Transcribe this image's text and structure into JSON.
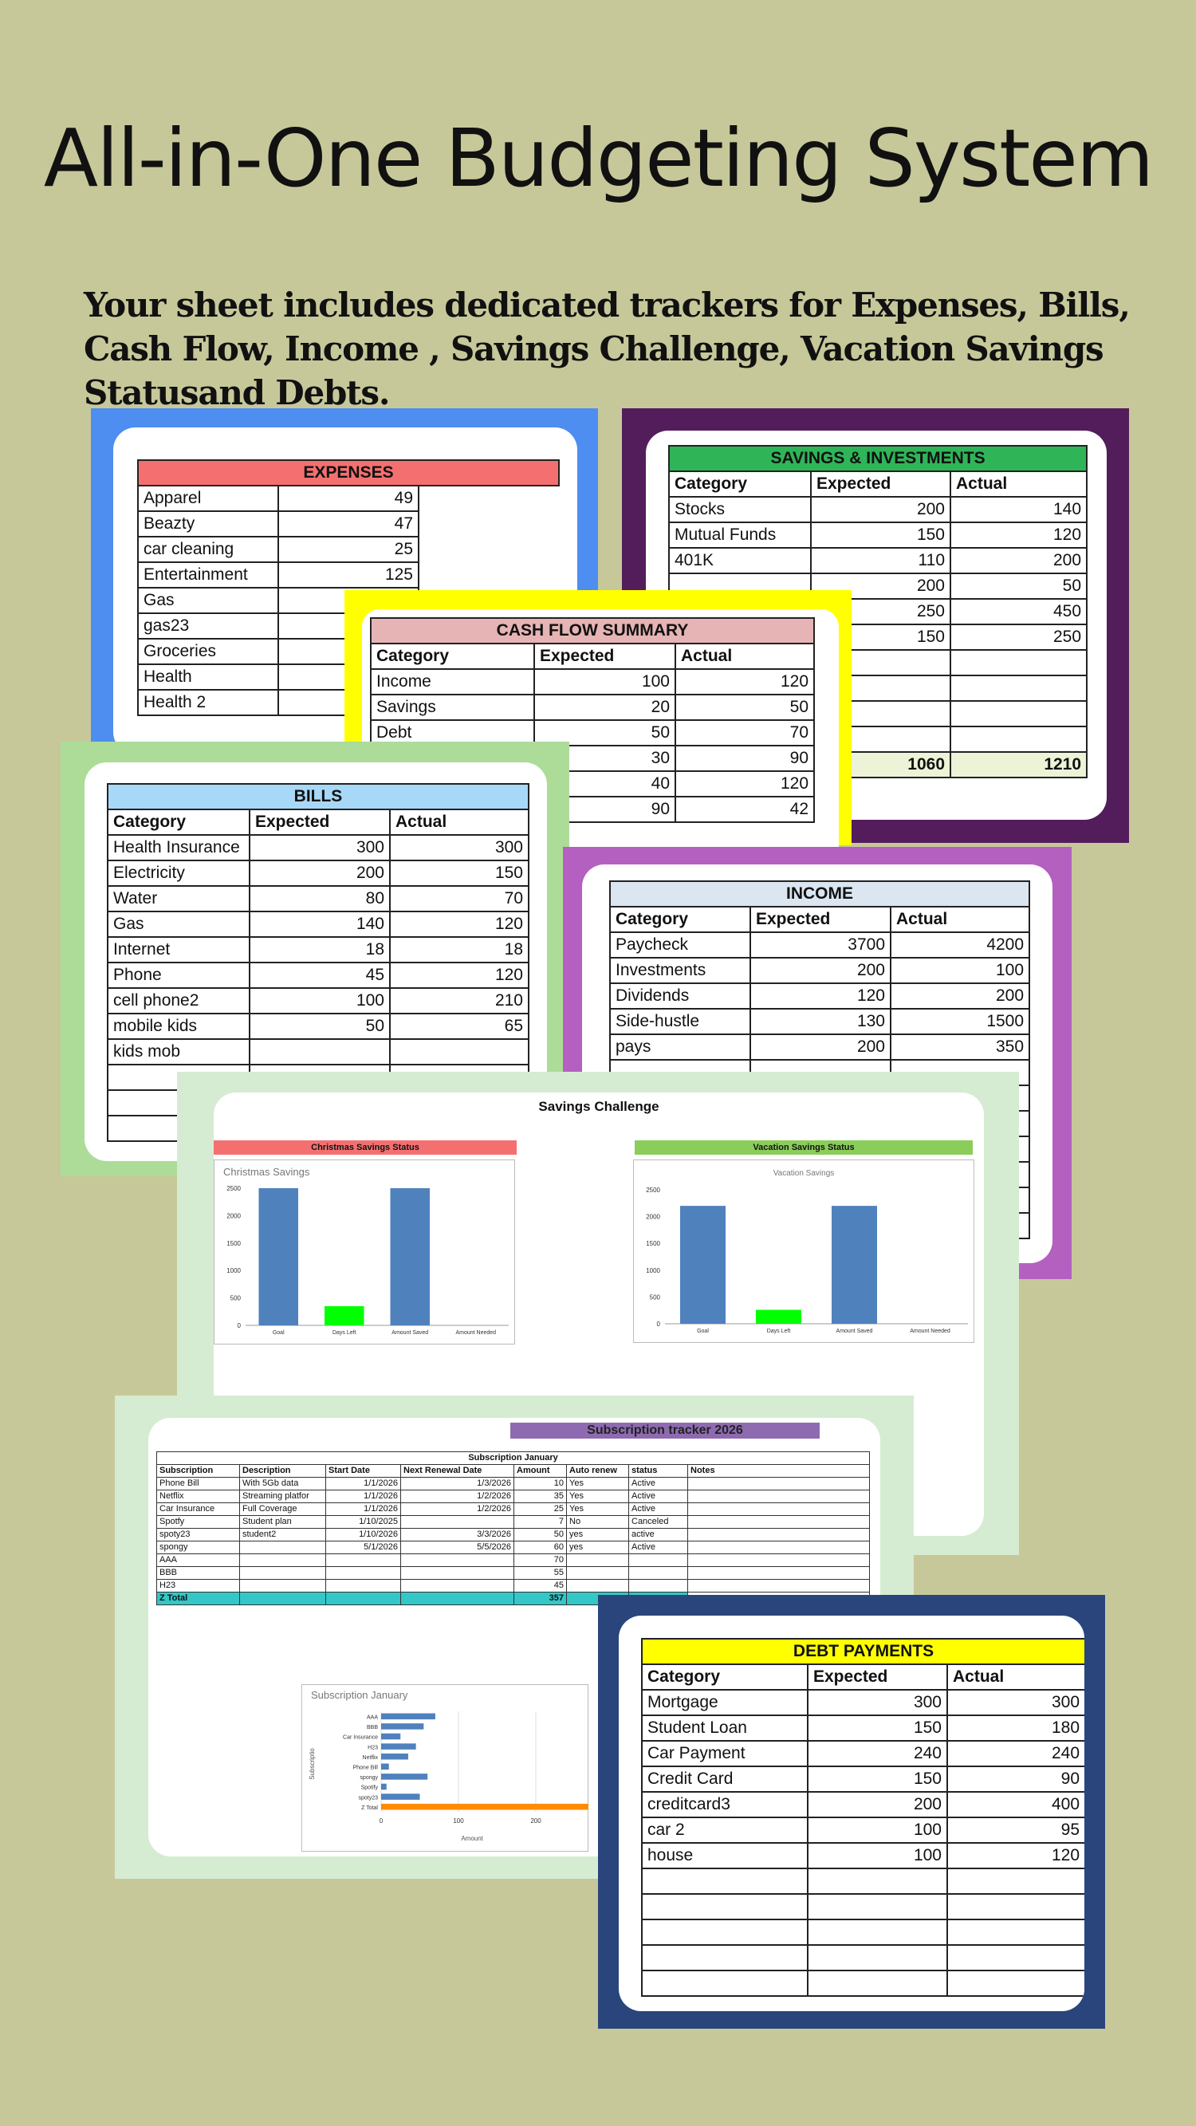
{
  "title": "All-in-One Budgeting System",
  "subtitle": "Your sheet includes dedicated trackers for Expenses, Bills, Cash Flow, Income , Savings Challenge, Vacation Savings Statusand Debts.",
  "colors": {
    "background": "#c7c89a",
    "expenses_frame": "#4d8ef0",
    "savings_frame": "#531d5c",
    "cashflow_frame": "#ffff00",
    "bills_frame": "#acdc98",
    "income_frame": "#b460c0",
    "challenge_frame": "#d6ecd2",
    "subscription_frame": "#d6ecd2",
    "debt_frame": "#29457c"
  },
  "expenses": {
    "title": "EXPENSES",
    "rows": [
      [
        "Apparel",
        "49"
      ],
      [
        "Beazty",
        "47"
      ],
      [
        "car cleaning",
        "25"
      ],
      [
        "Entertainment",
        "125"
      ],
      [
        "Gas",
        ""
      ],
      [
        "gas23",
        ""
      ],
      [
        "Groceries",
        ""
      ],
      [
        "Health",
        ""
      ],
      [
        "Health 2",
        ""
      ]
    ]
  },
  "savings": {
    "title": "SAVINGS & INVESTMENTS",
    "headers": [
      "Category",
      "Expected",
      "Actual"
    ],
    "rows": [
      [
        "Stocks",
        "200",
        "140"
      ],
      [
        "Mutual Funds",
        "150",
        "120"
      ],
      [
        "401K",
        "110",
        "200"
      ],
      [
        "",
        "200",
        "50"
      ],
      [
        "",
        "250",
        "450"
      ],
      [
        "",
        "150",
        "250"
      ],
      [
        "",
        "",
        ""
      ],
      [
        "",
        "",
        ""
      ],
      [
        "",
        "",
        ""
      ],
      [
        "",
        "",
        ""
      ]
    ],
    "total": [
      "",
      "1060",
      "1210"
    ]
  },
  "cashflow": {
    "title": "CASH FLOW SUMMARY",
    "headers": [
      "Category",
      "Expected",
      "Actual"
    ],
    "rows": [
      [
        "Income",
        "100",
        "120"
      ],
      [
        "Savings",
        "20",
        "50"
      ],
      [
        "Debt",
        "50",
        "70"
      ],
      [
        "",
        "30",
        "90"
      ],
      [
        "",
        "40",
        "120"
      ],
      [
        "",
        "90",
        "42"
      ]
    ]
  },
  "bills": {
    "title": "BILLS",
    "headers": [
      "Category",
      "Expected",
      "Actual"
    ],
    "rows": [
      [
        "Health Insurance",
        "300",
        "300"
      ],
      [
        "Electricity",
        "200",
        "150"
      ],
      [
        "Water",
        "80",
        "70"
      ],
      [
        "Gas",
        "140",
        "120"
      ],
      [
        "Internet",
        "18",
        "18"
      ],
      [
        "Phone",
        "45",
        "120"
      ],
      [
        "cell  phone2",
        "100",
        "210"
      ],
      [
        "mobile kids",
        "50",
        "65"
      ],
      [
        "kids mob",
        "",
        ""
      ],
      [
        "",
        "",
        ""
      ],
      [
        "",
        "",
        ""
      ],
      [
        "",
        "",
        ""
      ]
    ]
  },
  "income": {
    "title": "INCOME",
    "headers": [
      "Category",
      "Expected",
      "Actual"
    ],
    "rows": [
      [
        "Paycheck",
        "3700",
        "4200"
      ],
      [
        "Investments",
        "200",
        "100"
      ],
      [
        "Dividends",
        "120",
        "200"
      ],
      [
        "Side-hustle",
        "130",
        "1500"
      ],
      [
        "pays",
        "200",
        "350"
      ],
      [
        "",
        "",
        ""
      ],
      [
        "",
        "",
        ""
      ],
      [
        "",
        "",
        ""
      ],
      [
        "",
        "",
        ""
      ],
      [
        "",
        "",
        ""
      ],
      [
        "",
        "",
        ""
      ],
      [
        "",
        "",
        ""
      ]
    ]
  },
  "challenge": {
    "title": "Savings Challenge",
    "christmas_header": "Christmas Savings Status",
    "vacation_header": "Vacation Savings Status"
  },
  "chart_data": [
    {
      "type": "bar",
      "title": "Christmas Savings",
      "categories": [
        "Goal",
        "Days Left",
        "Amount Saved",
        "Amount Needed"
      ],
      "values": [
        2500,
        350,
        2500,
        0
      ],
      "ylim": [
        0,
        2500
      ],
      "yticks": [
        0,
        500,
        1000,
        1500,
        2000,
        2500
      ],
      "colors": [
        "#4f81bd",
        "#00ff00",
        "#4f81bd",
        "#4f81bd"
      ]
    },
    {
      "type": "bar",
      "title": "Vacation Savings",
      "categories": [
        "Goal",
        "Days Left",
        "Amount Saved",
        "Amount Needed"
      ],
      "values": [
        2200,
        260,
        2200,
        0
      ],
      "ylim": [
        0,
        2500
      ],
      "yticks": [
        0,
        500,
        1000,
        1500,
        2000,
        2500
      ],
      "colors": [
        "#4f81bd",
        "#00ff00",
        "#4f81bd",
        "#4f81bd"
      ]
    },
    {
      "type": "bar",
      "orientation": "horizontal",
      "title": "Subscription  January",
      "categories": [
        "AAA",
        "BBB",
        "Car Insurance",
        "H23",
        "Netflix",
        "Phone Bill",
        "spongy",
        "Spotify",
        "spoty23",
        "Z Total"
      ],
      "values": [
        70,
        55,
        25,
        45,
        35,
        10,
        60,
        7,
        50,
        357
      ],
      "xticks": [
        0,
        100,
        200
      ],
      "xlabel": "Amount",
      "ylabel": "Subscriptio",
      "colors": [
        "#4f81bd",
        "#4f81bd",
        "#4f81bd",
        "#4f81bd",
        "#4f81bd",
        "#4f81bd",
        "#4f81bd",
        "#4f81bd",
        "#4f81bd",
        "#ff8c00"
      ]
    }
  ],
  "subscription": {
    "banner": "Subscription tracker 2026",
    "table_title": "Subscription  January",
    "headers": [
      "Subscription",
      "Description",
      "Start Date",
      "Next Renewal Date",
      "Amount",
      "Auto renew",
      "status",
      "Notes"
    ],
    "rows": [
      [
        "Phone Bill",
        "With 5Gb data",
        "1/1/2026",
        "1/3/2026",
        "10",
        "Yes",
        "Active",
        ""
      ],
      [
        "Netflix",
        "Streaming platfor",
        "1/1/2026",
        "1/2/2026",
        "35",
        "Yes",
        "Active",
        ""
      ],
      [
        "Car Insurance",
        "Full Coverage",
        "1/1/2026",
        "1/2/2026",
        "25",
        "Yes",
        "Active",
        ""
      ],
      [
        "Spotfy",
        "Student plan",
        "1/10/2025",
        "",
        "7",
        "No",
        "Canceled",
        ""
      ],
      [
        "spoty23",
        "student2",
        "1/10/2026",
        "3/3/2026",
        "50",
        "yes",
        "active",
        ""
      ],
      [
        "spongy",
        "",
        "5/1/2026",
        "5/5/2026",
        "60",
        "yes",
        "Active",
        ""
      ],
      [
        "AAA",
        "",
        "",
        "",
        "70",
        "",
        "",
        ""
      ],
      [
        "BBB",
        "",
        "",
        "",
        "55",
        "",
        "",
        ""
      ],
      [
        "H23",
        "",
        "",
        "",
        "45",
        "",
        "",
        ""
      ]
    ],
    "total": [
      "Z Total",
      "",
      "",
      "",
      "357",
      "",
      "",
      ""
    ]
  },
  "debt": {
    "title": "DEBT PAYMENTS",
    "headers": [
      "Category",
      "Expected",
      "Actual"
    ],
    "rows": [
      [
        "Mortgage",
        "300",
        "300"
      ],
      [
        "Student Loan",
        "150",
        "180"
      ],
      [
        "Car Payment",
        "240",
        "240"
      ],
      [
        "Credit Card",
        "150",
        "90"
      ],
      [
        "creditcard3",
        "200",
        "400"
      ],
      [
        "car 2",
        "100",
        "95"
      ],
      [
        "house",
        "100",
        "120"
      ],
      [
        "",
        "",
        ""
      ],
      [
        "",
        "",
        ""
      ],
      [
        "",
        "",
        ""
      ],
      [
        "",
        "",
        ""
      ],
      [
        "",
        "",
        ""
      ]
    ]
  }
}
